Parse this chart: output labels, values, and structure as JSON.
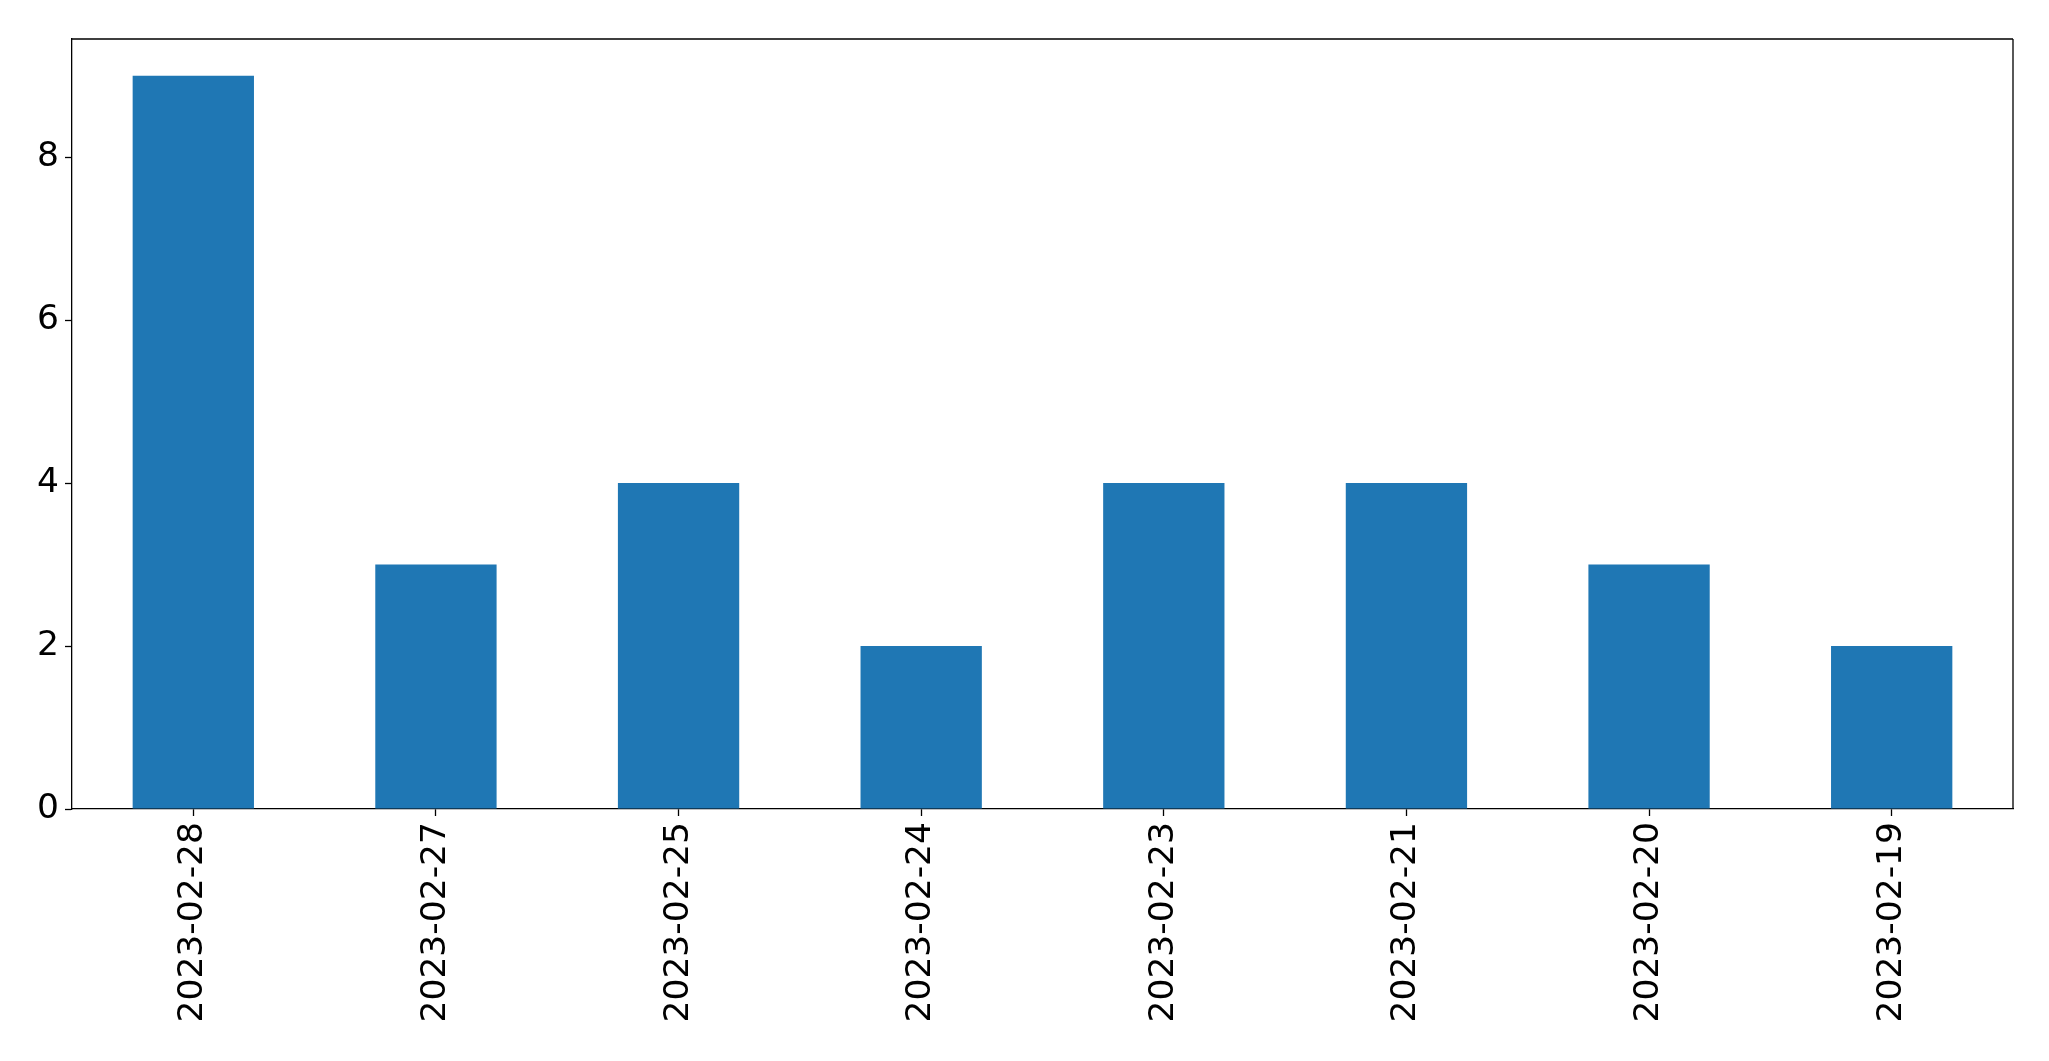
{
  "chart_data": {
    "type": "bar",
    "categories": [
      "2023-02-28",
      "2023-02-27",
      "2023-02-25",
      "2023-02-24",
      "2023-02-23",
      "2023-02-21",
      "2023-02-20",
      "2023-02-19"
    ],
    "values": [
      9,
      3,
      4,
      2,
      4,
      4,
      3,
      2
    ],
    "color": "#1f77b4",
    "ylim": [
      0,
      9.45
    ],
    "yticks": [
      0,
      2,
      4,
      6,
      8
    ]
  }
}
